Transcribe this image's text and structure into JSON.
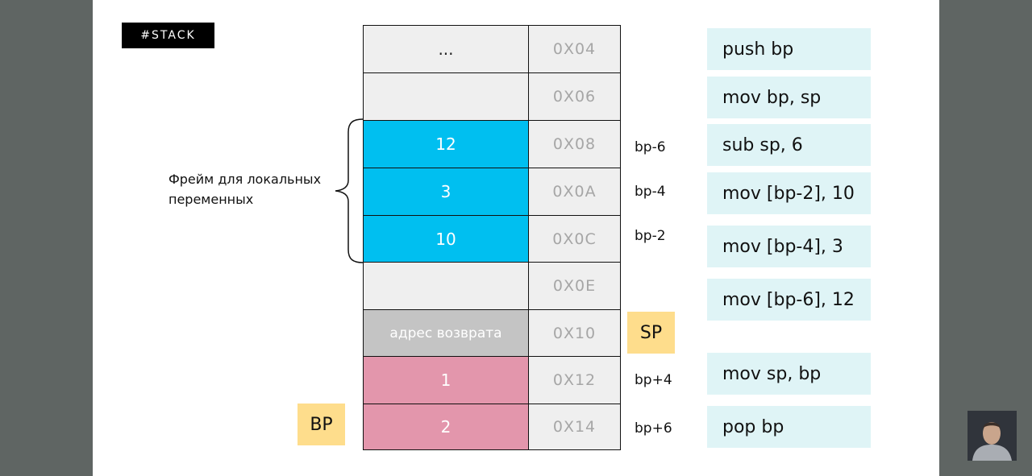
{
  "tag": "#STACK",
  "frame_label": "Фрейм для локальных переменных",
  "stack": [
    {
      "value": "...",
      "address": "0X04",
      "offset": "",
      "color": "#efefef"
    },
    {
      "value": "",
      "address": "0X06",
      "offset": "",
      "color": "#efefef"
    },
    {
      "value": "12",
      "address": "0X08",
      "offset": "bp-6",
      "color": "#00bff0"
    },
    {
      "value": "3",
      "address": "0X0A",
      "offset": "bp-4",
      "color": "#00bff0"
    },
    {
      "value": "10",
      "address": "0X0C",
      "offset": "bp-2",
      "color": "#00bff0"
    },
    {
      "value": "",
      "address": "0X0E",
      "offset": "",
      "color": "#efefef"
    },
    {
      "value": "адрес возврата",
      "address": "0X10",
      "offset": "",
      "color": "#c4c4c4"
    },
    {
      "value": "1",
      "address": "0X12",
      "offset": "bp+4",
      "color": "#e396ac"
    },
    {
      "value": "2",
      "address": "0X14",
      "offset": "bp+6",
      "color": "#e396ac"
    }
  ],
  "registers": {
    "sp": "SP",
    "bp": "BP"
  },
  "instructions": [
    "push bp",
    "mov bp, sp",
    "sub sp, 6",
    "mov [bp-2], 10",
    "mov [bp-4], 3",
    "mov [bp-6], 12",
    "mov sp, bp",
    "pop bp"
  ]
}
